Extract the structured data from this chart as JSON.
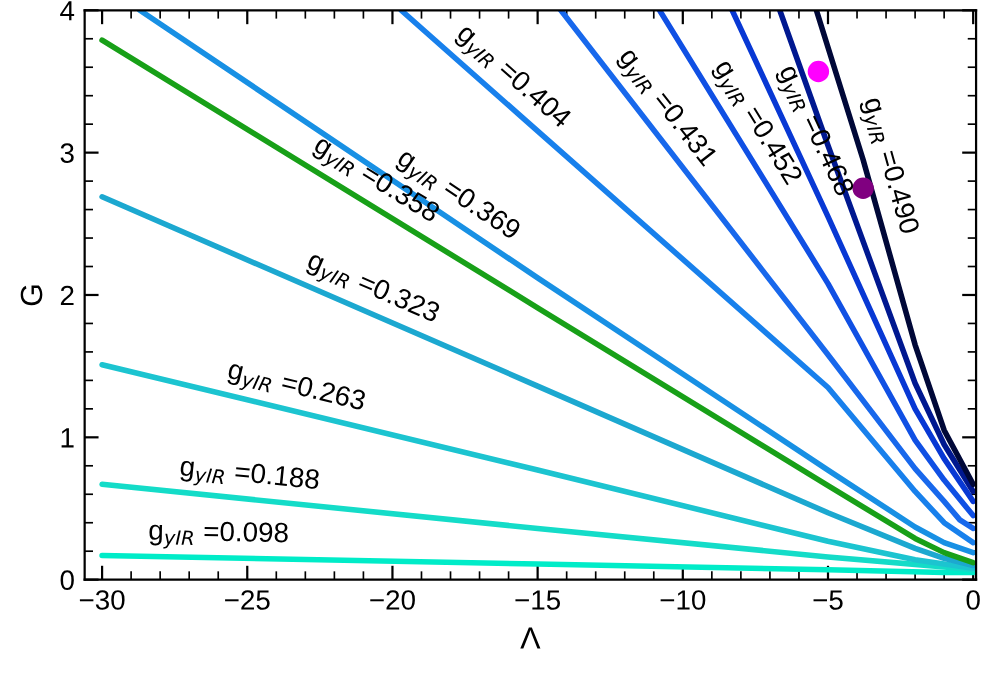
{
  "chart_data": {
    "type": "line",
    "xlabel": "Λ",
    "ylabel": "G",
    "xlim": [
      -30.6,
      0.1
    ],
    "ylim": [
      0,
      4
    ],
    "xticks": [
      {
        "value": -30,
        "label": "−30"
      },
      {
        "value": -25,
        "label": "−25"
      },
      {
        "value": -20,
        "label": "−20"
      },
      {
        "value": -15,
        "label": "−15"
      },
      {
        "value": -10,
        "label": "−10"
      },
      {
        "value": -5,
        "label": "−5"
      },
      0
    ],
    "yticks": [
      0,
      1,
      2,
      3,
      4
    ],
    "grid": false,
    "legend": false,
    "marker": "none",
    "line_style": "solid",
    "series": [
      {
        "color": "#00ecc8",
        "x": [
          -30,
          -15,
          -5,
          -1,
          0
        ],
        "values": [
          0.17,
          0.11,
          0.07,
          0.05,
          0.05
        ]
      },
      {
        "color": "#14dcc8",
        "x": [
          -30,
          -15,
          -5,
          -1,
          0
        ],
        "values": [
          0.67,
          0.36,
          0.16,
          0.09,
          0.07
        ]
      },
      {
        "color": "#1cc4d0",
        "x": [
          -30,
          -15,
          -5,
          -2,
          -1,
          0
        ],
        "values": [
          1.51,
          0.77,
          0.27,
          0.14,
          0.11,
          0.08
        ]
      },
      {
        "color": "#1ca8d0",
        "x": [
          -30,
          -15,
          -5,
          -2,
          -1,
          0
        ],
        "values": [
          2.69,
          1.36,
          0.47,
          0.22,
          0.15,
          0.1
        ]
      },
      {
        "color": "#18a018",
        "x": [
          -30,
          -15,
          -5,
          -2,
          -1,
          0
        ],
        "values": [
          3.79,
          1.91,
          0.66,
          0.29,
          0.19,
          0.12
        ]
      },
      {
        "color": "#1890e4",
        "x": [
          -28.7,
          -15,
          -5,
          -2,
          -1,
          0
        ],
        "values": [
          4,
          2.12,
          0.77,
          0.37,
          0.26,
          0.19
        ]
      },
      {
        "color": "#1880ec",
        "x": [
          -19.7,
          -15.6,
          -5,
          -2,
          -1,
          0
        ],
        "values": [
          4,
          3.26,
          1.35,
          0.62,
          0.4,
          0.26
        ]
      },
      {
        "color": "#1868ec",
        "x": [
          -14.2,
          -5,
          -2,
          -1,
          -0.46,
          0
        ],
        "values": [
          4,
          1.58,
          0.78,
          0.55,
          0.42,
          0.36
        ]
      },
      {
        "color": "#1050e4",
        "x": [
          -10.8,
          -5,
          -2,
          -1,
          0
        ],
        "values": [
          4,
          2.08,
          0.98,
          0.7,
          0.45
        ]
      },
      {
        "color": "#0838d4",
        "x": [
          -8.3,
          -5,
          -2,
          -1,
          0
        ],
        "values": [
          4,
          2.55,
          1.2,
          0.85,
          0.55
        ]
      },
      {
        "color": "#001890",
        "x": [
          -6.66,
          -5,
          -2,
          -1,
          0
        ],
        "values": [
          4,
          3.05,
          1.38,
          0.95,
          0.62
        ]
      },
      {
        "color": "#000838",
        "x": [
          -5.4,
          -3.79,
          -2,
          -1,
          0
        ],
        "values": [
          4,
          2.95,
          1.65,
          1.05,
          0.67
        ]
      },
      {
        "type": "scatter",
        "marker": "circle",
        "color": "#ff00ff",
        "x": [
          -5.33
        ],
        "values": [
          3.57
        ]
      },
      {
        "type": "scatter",
        "marker": "circle",
        "color": "#800080",
        "x": [
          -3.79
        ],
        "values": [
          2.75
        ]
      }
    ],
    "annotations": [
      {
        "text": "g$_{yIR}$ =0.098",
        "x": -26.0,
        "y": 0.154
      },
      {
        "text": "g$_{yIR}$ =0.188",
        "x": -25.0,
        "y": 0.567
      },
      {
        "text": "g$_{yIR}$ =0.263",
        "x": -23.5,
        "y": 1.189
      },
      {
        "text": "g$_{yIR}$ =0.323",
        "x": -21.0,
        "y": 1.892
      },
      {
        "text": "g$_{yIR}$ =0.358",
        "x": -21.0,
        "y": 2.662
      },
      {
        "text": "g$_{yIR}$ =0.369",
        "x": -18.2,
        "y": 2.559
      },
      {
        "text": "g$_{yIR}$ =0.404",
        "x": -16.4,
        "y": 3.404
      },
      {
        "text": "g$_{yIR}$ =0.431",
        "x": -11.2,
        "y": 3.21
      },
      {
        "text": "g$_{yIR}$ =0.452",
        "x": -8.15,
        "y": 3.12
      },
      {
        "text": "g$_{yIR}$ =0.468",
        "x": -6.2,
        "y": 3.08
      },
      {
        "text": "g$_{yIR}$ =0.490",
        "x": -3.67,
        "y": 2.86
      }
    ]
  }
}
